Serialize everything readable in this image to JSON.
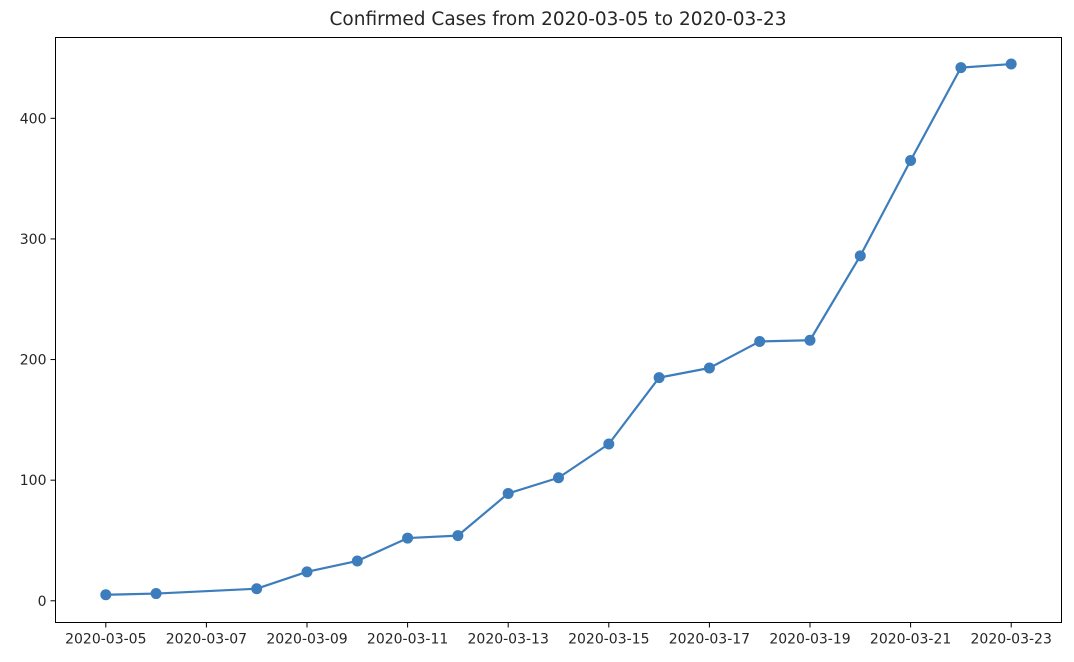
{
  "colors": {
    "series": "#3d7dbc",
    "axis": "#000000",
    "text": "#262626",
    "background": "#ffffff"
  },
  "chart_data": {
    "type": "line",
    "title": "Confirmed Cases from 2020-03-05 to 2020-03-23",
    "xlabel": "",
    "ylabel": "",
    "grid": false,
    "legend": "none",
    "marker": "circle",
    "x_range": [
      "2020-03-04",
      "2020-03-24"
    ],
    "ylim": [
      -18,
      467
    ],
    "x_ticks": [
      "2020-03-05",
      "2020-03-07",
      "2020-03-09",
      "2020-03-11",
      "2020-03-13",
      "2020-03-15",
      "2020-03-17",
      "2020-03-19",
      "2020-03-21",
      "2020-03-23"
    ],
    "y_ticks": [
      0,
      100,
      200,
      300,
      400
    ],
    "series": [
      {
        "x": [
          "2020-03-05",
          "2020-03-06",
          "2020-03-08",
          "2020-03-09",
          "2020-03-10",
          "2020-03-11",
          "2020-03-12",
          "2020-03-13",
          "2020-03-14",
          "2020-03-15",
          "2020-03-16",
          "2020-03-17",
          "2020-03-18",
          "2020-03-19",
          "2020-03-20",
          "2020-03-21",
          "2020-03-22",
          "2020-03-23"
        ],
        "values": [
          5,
          6,
          10,
          24,
          33,
          52,
          54,
          89,
          102,
          130,
          185,
          193,
          215,
          216,
          286,
          365,
          442,
          445
        ]
      }
    ]
  }
}
